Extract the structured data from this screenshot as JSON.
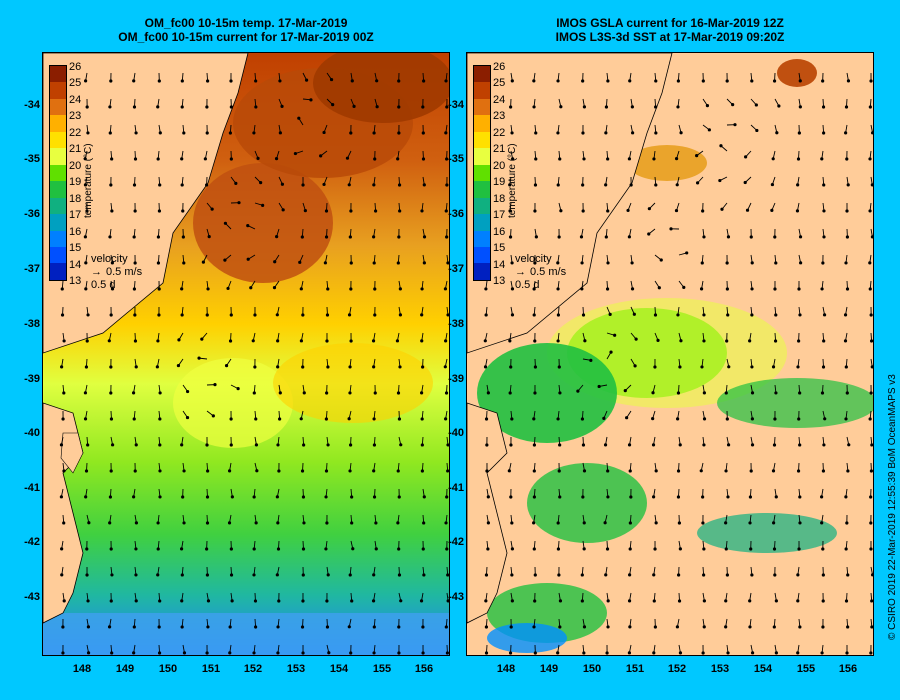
{
  "panels": {
    "left": {
      "title_line1": "OM_fc00 10-15m temp. 17-Mar-2019",
      "title_line2": "OM_fc00 10-15m current for 17-Mar-2019 00Z"
    },
    "right": {
      "title_line1": "IMOS GSLA current for 16-Mar-2019 12Z",
      "title_line2": "IMOS L3S-3d SST at 17-Mar-2019 09:20Z"
    }
  },
  "axes": {
    "lat_ticks": [
      "-34",
      "-35",
      "-36",
      "-37",
      "-38",
      "-39",
      "-40",
      "-41",
      "-42",
      "-43"
    ],
    "lon_ticks": [
      "148",
      "149",
      "150",
      "151",
      "152",
      "153",
      "154",
      "155",
      "156"
    ]
  },
  "colorbar": {
    "title": "temperature (°C)",
    "ticks": [
      "26",
      "25",
      "24",
      "23",
      "22",
      "21",
      "20",
      "19",
      "18",
      "17",
      "16",
      "15",
      "14",
      "13"
    ],
    "colors": [
      "#8b1e00",
      "#c04000",
      "#e07010",
      "#ffb000",
      "#ffe000",
      "#e8ff40",
      "#60e000",
      "#20c040",
      "#10b080",
      "#00a0c0",
      "#0080ff",
      "#0050ff",
      "#0020c0",
      "#000080"
    ]
  },
  "legend": {
    "label": "velocity",
    "speed": "0.5 m/s",
    "duration": "0.5 d"
  },
  "credit": "© CSIRO 2019   22-Mar-2019 12:55:39 BoM OceanMAPS v3"
}
